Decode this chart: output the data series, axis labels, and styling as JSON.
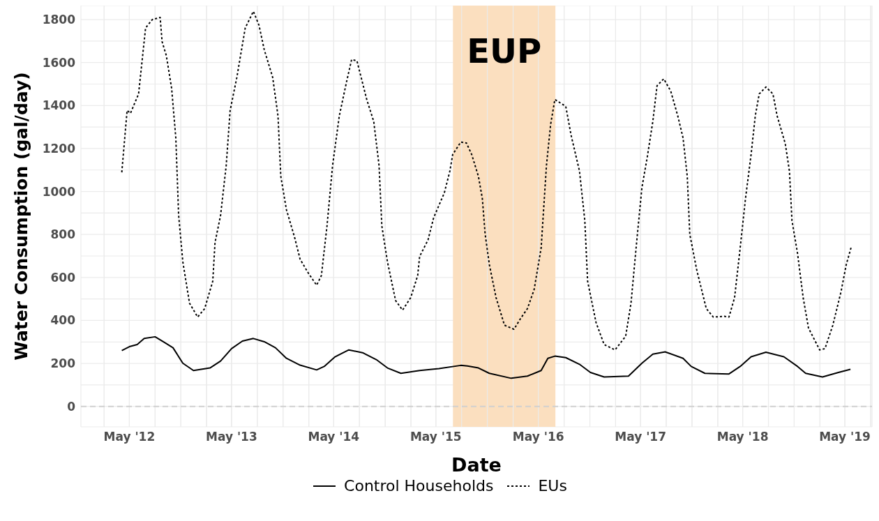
{
  "chart_data": {
    "type": "line",
    "xlabel": "Date",
    "ylabel": "Water Consumption (gal/day)",
    "xlim": [
      "2011-11-10",
      "2019-08-06"
    ],
    "ylim": [
      -95,
      1865
    ],
    "xticks": [
      {
        "value": "2012-02",
        "label": null
      },
      {
        "value": "2012-05",
        "label": "May '12"
      },
      {
        "value": "2012-08",
        "label": null
      },
      {
        "value": "2012-11",
        "label": null
      },
      {
        "value": "2013-02",
        "label": null
      },
      {
        "value": "2013-05",
        "label": "May '13"
      },
      {
        "value": "2013-08",
        "label": null
      },
      {
        "value": "2013-11",
        "label": null
      },
      {
        "value": "2014-02",
        "label": null
      },
      {
        "value": "2014-05",
        "label": "May '14"
      },
      {
        "value": "2014-08",
        "label": null
      },
      {
        "value": "2014-11",
        "label": null
      },
      {
        "value": "2015-02",
        "label": null
      },
      {
        "value": "2015-05",
        "label": "May '15"
      },
      {
        "value": "2015-08",
        "label": null
      },
      {
        "value": "2015-11",
        "label": null
      },
      {
        "value": "2016-02",
        "label": null
      },
      {
        "value": "2016-05",
        "label": "May '16"
      },
      {
        "value": "2016-08",
        "label": null
      },
      {
        "value": "2016-11",
        "label": null
      },
      {
        "value": "2017-02",
        "label": null
      },
      {
        "value": "2017-05",
        "label": "May '17"
      },
      {
        "value": "2017-08",
        "label": null
      },
      {
        "value": "2017-11",
        "label": null
      },
      {
        "value": "2018-02",
        "label": null
      },
      {
        "value": "2018-05",
        "label": "May '18"
      },
      {
        "value": "2018-08",
        "label": null
      },
      {
        "value": "2018-11",
        "label": null
      },
      {
        "value": "2019-02",
        "label": null
      },
      {
        "value": "2019-05",
        "label": "May '19"
      },
      {
        "value": "2019-08",
        "label": null
      }
    ],
    "yticks": [
      0,
      {
        "value": 100,
        "label": null
      },
      200,
      {
        "value": 300,
        "label": null
      },
      400,
      {
        "value": 500,
        "label": null
      },
      600,
      {
        "value": 700,
        "label": null
      },
      800,
      {
        "value": 900,
        "label": null
      },
      1000,
      {
        "value": 1100,
        "label": null
      },
      1200,
      {
        "value": 1300,
        "label": null
      },
      1400,
      {
        "value": 1500,
        "label": null
      },
      1600,
      {
        "value": 1700,
        "label": null
      },
      1800
    ],
    "grid": true,
    "legend": "bottom",
    "marker": "none",
    "bands": [
      {
        "axis": "x",
        "from": "2015-07-01",
        "to": "2016-07-01",
        "label": "EUP",
        "color": "#fbdfbf"
      }
    ],
    "ref_lines": [
      {
        "axis": "y",
        "value": 0,
        "color": "#d0d0d0",
        "line_style": "dashed"
      }
    ],
    "series": [
      {
        "name": "Control Households",
        "color": "#000000",
        "line_style": "solid",
        "x": [
          "2012-04-04",
          "2012-05-01",
          "2012-05-29",
          "2012-06-23",
          "2012-08-01",
          "2012-08-30",
          "2012-10-04",
          "2012-11-08",
          "2012-12-16",
          "2013-02-13",
          "2013-03-23",
          "2013-05-01",
          "2013-06-09",
          "2013-07-18",
          "2013-08-26",
          "2013-10-05",
          "2013-11-13",
          "2014-01-01",
          "2014-03-01",
          "2014-03-28",
          "2014-05-06",
          "2014-06-24",
          "2014-08-12",
          "2014-09-30",
          "2014-11-09",
          "2014-12-27",
          "2015-03-04",
          "2015-05-12",
          "2015-07-29",
          "2015-08-22",
          "2015-09-30",
          "2015-11-08",
          "2016-01-25",
          "2016-03-23",
          "2016-05-11",
          "2016-06-04",
          "2016-06-29",
          "2016-08-07",
          "2016-09-25",
          "2016-11-03",
          "2016-12-22",
          "2017-03-19",
          "2017-05-06",
          "2017-06-14",
          "2017-07-28",
          "2017-09-30",
          "2017-10-29",
          "2017-12-17",
          "2018-03-13",
          "2018-04-22",
          "2018-05-31",
          "2018-07-23",
          "2018-09-25",
          "2018-11-13",
          "2018-12-12",
          "2019-02-10",
          "2019-04-08",
          "2019-05-21"
        ],
        "values": [
          260,
          278,
          288,
          316,
          324,
          301,
          273,
          201,
          167,
          179,
          211,
          269,
          304,
          316,
          301,
          273,
          224,
          192,
          170,
          186,
          231,
          263,
          250,
          218,
          179,
          154,
          167,
          176,
          191,
          188,
          179,
          154,
          131,
          141,
          167,
          224,
          234,
          227,
          196,
          158,
          137,
          141,
          201,
          243,
          254,
          224,
          186,
          154,
          151,
          186,
          231,
          252,
          231,
          186,
          154,
          137,
          158,
          173
        ]
      },
      {
        "name": "EUs",
        "color": "#000000",
        "line_style": "dotted",
        "x": [
          "2012-04-04",
          "2012-04-23",
          "2012-05-05",
          "2012-06-03",
          "2012-06-28",
          "2012-07-22",
          "2012-08-19",
          "2012-08-26",
          "2012-09-10",
          "2012-09-29",
          "2012-10-14",
          "2012-10-24",
          "2012-11-08",
          "2012-12-02",
          "2012-12-31",
          "2013-01-25",
          "2013-02-23",
          "2013-03-03",
          "2013-03-23",
          "2013-04-12",
          "2013-04-26",
          "2013-05-20",
          "2013-06-19",
          "2013-07-18",
          "2013-08-07",
          "2013-08-26",
          "2013-09-25",
          "2013-10-14",
          "2013-10-24",
          "2013-11-13",
          "2013-12-12",
          "2014-01-01",
          "2014-01-30",
          "2014-03-01",
          "2014-03-18",
          "2014-04-07",
          "2014-04-27",
          "2014-05-21",
          "2014-06-15",
          "2014-07-04",
          "2014-07-23",
          "2014-08-27",
          "2014-09-21",
          "2014-10-10",
          "2014-10-20",
          "2014-11-09",
          "2014-12-08",
          "2015-01-02",
          "2015-01-31",
          "2015-02-25",
          "2015-03-04",
          "2015-04-03",
          "2015-04-23",
          "2015-05-31",
          "2015-06-20",
          "2015-06-30",
          "2015-07-29",
          "2015-08-18",
          "2015-09-06",
          "2015-09-30",
          "2015-10-14",
          "2015-10-24",
          "2015-11-08",
          "2015-12-02",
          "2016-01-01",
          "2016-02-04",
          "2016-02-28",
          "2016-03-23",
          "2016-04-16",
          "2016-05-11",
          "2016-05-30",
          "2016-06-14",
          "2016-06-29",
          "2016-08-07",
          "2016-08-26",
          "2016-09-25",
          "2016-10-14",
          "2016-10-24",
          "2016-11-23",
          "2016-12-22",
          "2017-01-30",
          "2017-03-09",
          "2017-03-28",
          "2017-04-17",
          "2017-05-06",
          "2017-05-25",
          "2017-06-14",
          "2017-06-29",
          "2017-07-23",
          "2017-08-17",
          "2017-09-11",
          "2017-09-30",
          "2017-10-15",
          "2017-10-24",
          "2017-11-18",
          "2017-12-22",
          "2018-01-16",
          "2018-02-24",
          "2018-03-13",
          "2018-04-02",
          "2018-04-22",
          "2018-05-11",
          "2018-05-31",
          "2018-06-15",
          "2018-06-29",
          "2018-07-23",
          "2018-08-17",
          "2018-09-01",
          "2018-09-30",
          "2018-10-15",
          "2018-10-24",
          "2018-11-13",
          "2018-12-03",
          "2018-12-22",
          "2019-01-31",
          "2019-02-19",
          "2019-03-19",
          "2019-04-17",
          "2019-05-06",
          "2019-05-24"
        ],
        "values": [
          1089,
          1377,
          1364,
          1454,
          1761,
          1800,
          1810,
          1697,
          1633,
          1480,
          1249,
          890,
          673,
          480,
          416,
          455,
          583,
          762,
          890,
          1121,
          1377,
          1531,
          1761,
          1838,
          1774,
          1659,
          1531,
          1352,
          1070,
          916,
          788,
          685,
          621,
          564,
          609,
          839,
          1121,
          1352,
          1505,
          1614,
          1608,
          1428,
          1326,
          1121,
          839,
          673,
          493,
          448,
          506,
          609,
          698,
          775,
          878,
          993,
          1095,
          1172,
          1230,
          1226,
          1172,
          1070,
          967,
          801,
          660,
          506,
          378,
          359,
          410,
          455,
          544,
          737,
          1121,
          1313,
          1428,
          1396,
          1262,
          1095,
          865,
          583,
          391,
          288,
          263,
          327,
          480,
          762,
          1018,
          1159,
          1326,
          1492,
          1524,
          1467,
          1352,
          1249,
          1070,
          801,
          634,
          455,
          416,
          419,
          416,
          506,
          737,
          967,
          1172,
          1352,
          1454,
          1486,
          1454,
          1352,
          1223,
          1095,
          865,
          711,
          506,
          365,
          263,
          269,
          378,
          532,
          660,
          743
        ]
      }
    ]
  }
}
